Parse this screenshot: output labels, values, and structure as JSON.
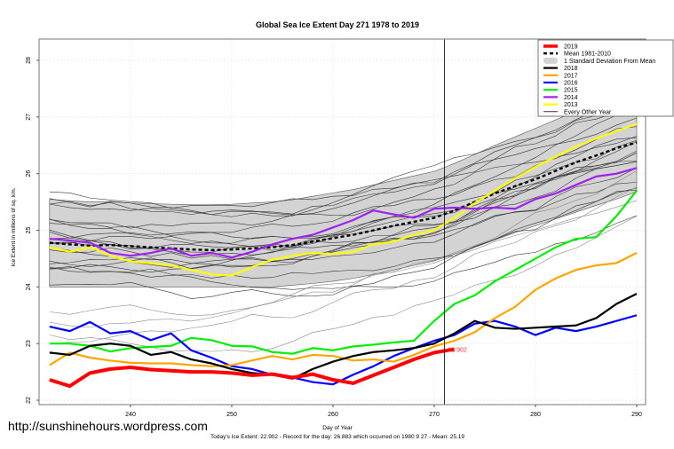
{
  "chart_data": {
    "type": "line",
    "title": "Global Sea Ice Extent Day 271 1978 to 2019",
    "xlabel": "Day of Year",
    "ylabel": "Ice Extent in millions of sq. km.",
    "xlim": [
      231,
      291
    ],
    "ylim": [
      22,
      28.4
    ],
    "x_ticks": [
      240,
      250,
      260,
      270,
      280,
      290
    ],
    "y_ticks": [
      22,
      23,
      24,
      25,
      26,
      27,
      28
    ],
    "grid": true,
    "legend_position": "top-right",
    "current_day_marker": 271,
    "current_value_label": "22.902",
    "footer": "Today's Ice Extent: 22.902  - Record for the day: 26.883 which occurred on 1980 9 27  - Mean: 25.19",
    "watermark": "http://sunshinehours.wordpress.com",
    "legend": [
      {
        "label": "2019",
        "color": "#ff0000",
        "style": "thick"
      },
      {
        "label": "Mean 1981-2010",
        "color": "#000000",
        "style": "dashed"
      },
      {
        "label": "1 Standard Deviation From Mean",
        "color": "#d3d3d3",
        "style": "band"
      },
      {
        "label": "2018",
        "color": "#000000",
        "style": "line"
      },
      {
        "label": "2017",
        "color": "#ffa500",
        "style": "line"
      },
      {
        "label": "2016",
        "color": "#0000ff",
        "style": "line"
      },
      {
        "label": "2015",
        "color": "#00ee00",
        "style": "line"
      },
      {
        "label": "2014",
        "color": "#a020f0",
        "style": "line"
      },
      {
        "label": "2013",
        "color": "#ffff00",
        "style": "line"
      },
      {
        "label": "Every Other Year",
        "color": "#000000",
        "style": "thin"
      }
    ],
    "x": [
      232,
      234,
      236,
      238,
      240,
      242,
      244,
      246,
      248,
      250,
      252,
      254,
      256,
      258,
      260,
      262,
      264,
      266,
      268,
      270,
      272,
      274,
      276,
      278,
      280,
      282,
      284,
      286,
      288,
      290
    ],
    "mean": [
      24.78,
      24.75,
      24.73,
      24.74,
      24.72,
      24.7,
      24.68,
      24.66,
      24.65,
      24.66,
      24.68,
      24.7,
      24.74,
      24.8,
      24.86,
      24.92,
      25.0,
      25.08,
      25.15,
      25.22,
      25.35,
      25.5,
      25.65,
      25.78,
      25.9,
      26.05,
      26.2,
      26.32,
      26.45,
      26.55
    ],
    "sd_upper": [
      25.55,
      25.52,
      25.5,
      25.5,
      25.48,
      25.47,
      25.46,
      25.45,
      25.45,
      25.46,
      25.48,
      25.5,
      25.54,
      25.6,
      25.66,
      25.72,
      25.8,
      25.88,
      25.96,
      26.04,
      26.18,
      26.34,
      26.5,
      26.65,
      26.8,
      26.95,
      27.1,
      27.2,
      27.3,
      27.4
    ],
    "sd_lower": [
      24.0,
      24.0,
      24.0,
      24.0,
      24.0,
      24.0,
      24.0,
      24.0,
      24.0,
      24.0,
      24.0,
      24.0,
      24.03,
      24.06,
      24.1,
      24.15,
      24.22,
      24.3,
      24.38,
      24.46,
      24.58,
      24.7,
      24.83,
      24.96,
      25.08,
      25.2,
      25.32,
      25.44,
      25.55,
      25.68
    ],
    "series": [
      {
        "name": "2019",
        "color": "#ff0000",
        "width": 4,
        "values": [
          22.36,
          22.25,
          22.48,
          22.55,
          22.58,
          22.54,
          22.52,
          22.5,
          22.5,
          22.48,
          22.44,
          22.46,
          22.4,
          22.46,
          22.36,
          22.3,
          22.44,
          22.58,
          22.72,
          22.84,
          22.9,
          null,
          null,
          null,
          null,
          null,
          null,
          null,
          null,
          null
        ]
      },
      {
        "name": "2018",
        "color": "#000000",
        "width": 2.2,
        "values": [
          22.84,
          22.8,
          22.96,
          23.0,
          22.96,
          22.8,
          22.85,
          22.72,
          22.65,
          22.55,
          22.48,
          22.45,
          22.38,
          22.55,
          22.68,
          22.78,
          22.85,
          22.88,
          22.92,
          23.0,
          23.18,
          23.4,
          23.28,
          23.26,
          23.28,
          23.3,
          23.32,
          23.45,
          23.7,
          23.88
        ]
      },
      {
        "name": "2017",
        "color": "#ffa500",
        "width": 2.2,
        "values": [
          22.62,
          22.84,
          22.75,
          22.7,
          22.66,
          22.65,
          22.65,
          22.62,
          22.6,
          22.62,
          22.7,
          22.78,
          22.72,
          22.8,
          22.78,
          22.7,
          22.72,
          22.68,
          22.8,
          22.95,
          23.05,
          23.2,
          23.45,
          23.65,
          23.95,
          24.15,
          24.3,
          24.38,
          24.42,
          24.6
        ]
      },
      {
        "name": "2016",
        "color": "#0000ff",
        "width": 2.2,
        "values": [
          23.3,
          23.22,
          23.38,
          23.18,
          23.22,
          23.06,
          23.18,
          22.88,
          22.75,
          22.6,
          22.55,
          22.45,
          22.4,
          22.32,
          22.28,
          22.45,
          22.6,
          22.78,
          22.92,
          23.05,
          23.15,
          23.35,
          23.4,
          23.3,
          23.15,
          23.28,
          23.22,
          23.3,
          23.4,
          23.5
        ]
      },
      {
        "name": "2015",
        "color": "#00ee00",
        "width": 2.2,
        "values": [
          23.0,
          23.0,
          22.96,
          22.86,
          22.92,
          22.94,
          22.96,
          23.1,
          23.06,
          22.96,
          22.95,
          22.85,
          22.82,
          22.92,
          22.88,
          22.95,
          22.98,
          23.02,
          23.05,
          23.4,
          23.7,
          23.85,
          24.1,
          24.3,
          24.5,
          24.7,
          24.85,
          24.88,
          25.25,
          25.7
        ]
      },
      {
        "name": "2014",
        "color": "#a020f0",
        "width": 2.2,
        "values": [
          24.85,
          24.82,
          24.78,
          24.6,
          24.55,
          24.6,
          24.68,
          24.55,
          24.6,
          24.52,
          24.62,
          24.75,
          24.85,
          24.92,
          25.05,
          25.18,
          25.35,
          25.28,
          25.22,
          25.38,
          25.4,
          25.38,
          25.4,
          25.38,
          25.55,
          25.65,
          25.8,
          25.95,
          26.0,
          26.1
        ]
      },
      {
        "name": "2013",
        "color": "#ffff00",
        "width": 2.2,
        "values": [
          24.7,
          24.62,
          24.7,
          24.55,
          24.45,
          24.42,
          24.38,
          24.3,
          24.22,
          24.2,
          24.35,
          24.48,
          24.55,
          24.6,
          24.58,
          24.62,
          24.75,
          24.8,
          24.92,
          25.0,
          25.22,
          25.48,
          25.7,
          25.92,
          26.12,
          26.3,
          26.48,
          26.62,
          26.75,
          26.88
        ]
      }
    ]
  }
}
